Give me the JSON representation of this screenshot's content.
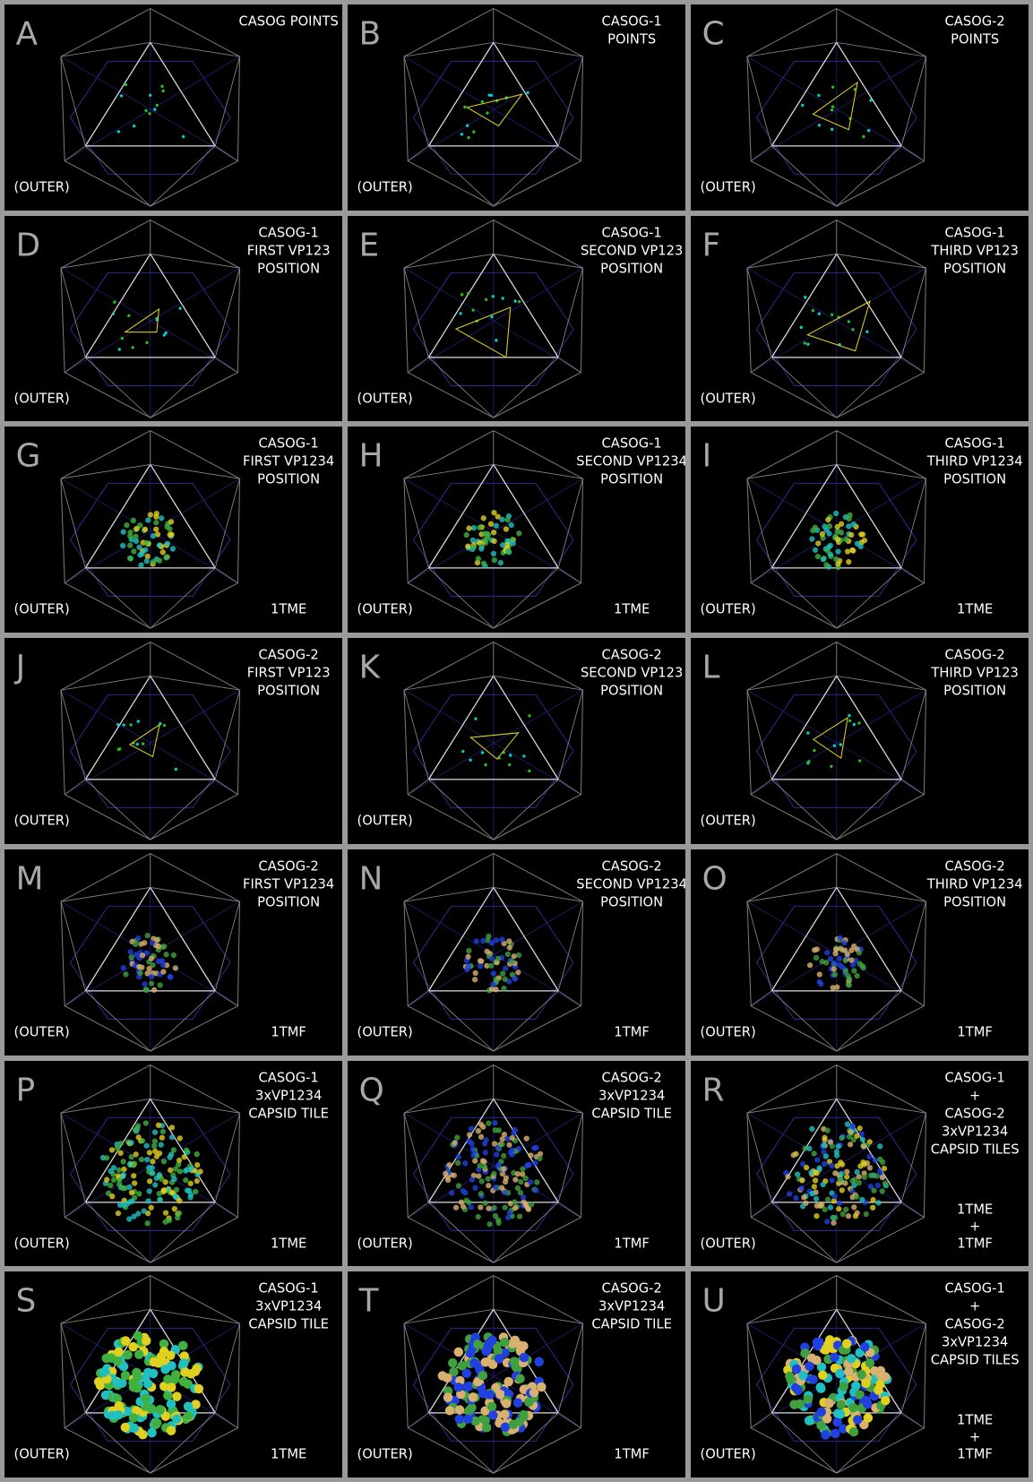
{
  "panels": [
    {
      "letter": "A",
      "label": [
        "CASOG POINTS"
      ],
      "corner": "(OUTER)",
      "pdb": []
    },
    {
      "letter": "B",
      "label": [
        "CASOG-1",
        "POINTS"
      ],
      "corner": "(OUTER)",
      "pdb": []
    },
    {
      "letter": "C",
      "label": [
        "CASOG-2",
        "POINTS"
      ],
      "corner": "(OUTER)",
      "pdb": []
    },
    {
      "letter": "D",
      "label": [
        "CASOG-1",
        "FIRST VP123",
        "POSITION"
      ],
      "corner": "(OUTER)",
      "pdb": []
    },
    {
      "letter": "E",
      "label": [
        "CASOG-1",
        "SECOND VP123",
        "POSITION"
      ],
      "corner": "(OUTER)",
      "pdb": []
    },
    {
      "letter": "F",
      "label": [
        "CASOG-1",
        "THIRD VP123",
        "POSITION"
      ],
      "corner": "(OUTER)",
      "pdb": []
    },
    {
      "letter": "G",
      "label": [
        "CASOG-1",
        "FIRST VP1234",
        "POSITION"
      ],
      "corner": "(OUTER)",
      "pdb": [
        "1TME"
      ]
    },
    {
      "letter": "H",
      "label": [
        "CASOG-1",
        "SECOND VP1234",
        "POSITION"
      ],
      "corner": "(OUTER)",
      "pdb": [
        "1TME"
      ]
    },
    {
      "letter": "I",
      "label": [
        "CASOG-1",
        "THIRD VP1234",
        "POSITION"
      ],
      "corner": "(OUTER)",
      "pdb": [
        "1TME"
      ]
    },
    {
      "letter": "J",
      "label": [
        "CASOG-2",
        "FIRST VP123",
        "POSITION"
      ],
      "corner": "(OUTER)",
      "pdb": []
    },
    {
      "letter": "K",
      "label": [
        "CASOG-2",
        "SECOND VP123",
        "POSITION"
      ],
      "corner": "(OUTER)",
      "pdb": []
    },
    {
      "letter": "L",
      "label": [
        "CASOG-2",
        "THIRD VP123",
        "POSITION"
      ],
      "corner": "(OUTER)",
      "pdb": []
    },
    {
      "letter": "M",
      "label": [
        "CASOG-2",
        "FIRST VP1234",
        "POSITION"
      ],
      "corner": "(OUTER)",
      "pdb": [
        "1TMF"
      ]
    },
    {
      "letter": "N",
      "label": [
        "CASOG-2",
        "SECOND VP1234",
        "POSITION"
      ],
      "corner": "(OUTER)",
      "pdb": [
        "1TMF"
      ]
    },
    {
      "letter": "O",
      "label": [
        "CASOG-2",
        "THIRD VP1234",
        "POSITION"
      ],
      "corner": "(OUTER)",
      "pdb": [
        "1TMF"
      ]
    },
    {
      "letter": "P",
      "label": [
        "CASOG-1",
        "3xVP1234",
        "CAPSID TILE"
      ],
      "corner": "(OUTER)",
      "pdb": [
        "1TME"
      ]
    },
    {
      "letter": "Q",
      "label": [
        "CASOG-2",
        "3xVP1234",
        "CAPSID TILE"
      ],
      "corner": "(OUTER)",
      "pdb": [
        "1TMF"
      ]
    },
    {
      "letter": "R",
      "label": [
        "CASOG-1",
        "+",
        "CASOG-2",
        "3xVP1234",
        "CAPSID TILES"
      ],
      "corner": "(OUTER)",
      "pdb": [
        "1TME",
        "+",
        "1TMF"
      ]
    },
    {
      "letter": "S",
      "label": [
        "CASOG-1",
        "3xVP1234",
        "CAPSID TILE"
      ],
      "corner": "(OUTER)",
      "pdb": [
        "1TME"
      ]
    },
    {
      "letter": "T",
      "label": [
        "CASOG-2",
        "3xVP1234",
        "CAPSID TILE"
      ],
      "corner": "(OUTER)",
      "pdb": [
        "1TMF"
      ]
    },
    {
      "letter": "U",
      "label": [
        "CASOG-1",
        "+",
        "CASOG-2",
        "3xVP1234",
        "CAPSID TILES"
      ],
      "corner": "(OUTER)",
      "pdb": [
        "1TME",
        "+",
        "1TMF"
      ]
    }
  ]
}
